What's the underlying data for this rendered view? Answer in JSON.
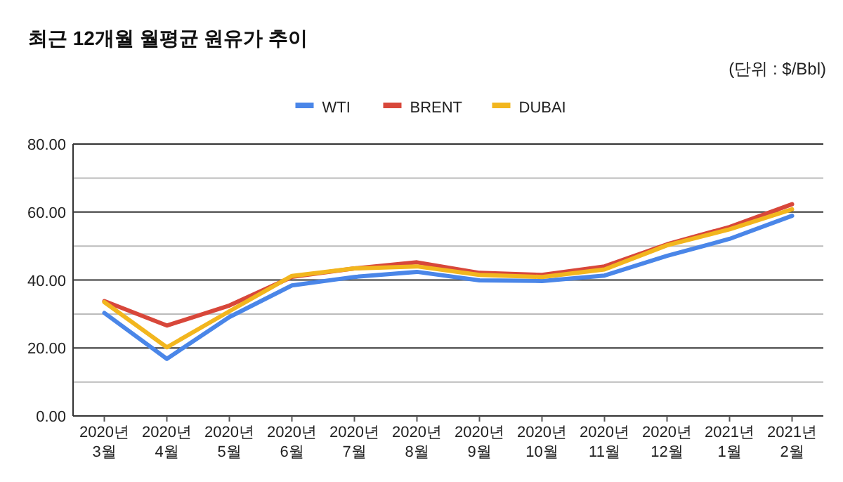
{
  "chart_data": {
    "type": "line",
    "title": "최근 12개월 월평균 원유가 추이",
    "subtitle": "(단위 : $/Bbl)",
    "categories": [
      "2020년 3월",
      "2020년 4월",
      "2020년 5월",
      "2020년 6월",
      "2020년 7월",
      "2020년 8월",
      "2020년 9월",
      "2020년 10월",
      "2020년 11월",
      "2020년 12월",
      "2021년 1월",
      "2021년 2월"
    ],
    "series": [
      {
        "name": "WTI",
        "color": "#4a86e8",
        "values": [
          30.3,
          16.8,
          29.1,
          38.4,
          40.9,
          42.4,
          39.9,
          39.7,
          41.3,
          47.1,
          52.1,
          58.9
        ]
      },
      {
        "name": "BRENT",
        "color": "#d8473a",
        "values": [
          33.8,
          26.6,
          32.5,
          40.9,
          43.4,
          45.2,
          42.1,
          41.5,
          44.0,
          50.5,
          55.6,
          62.3
        ]
      },
      {
        "name": "DUBAI",
        "color": "#f2b61e",
        "values": [
          33.5,
          20.2,
          30.8,
          41.2,
          43.4,
          44.0,
          41.5,
          40.9,
          43.1,
          50.2,
          54.9,
          60.8
        ]
      }
    ],
    "ylim": [
      0,
      80
    ],
    "yticks": [
      {
        "value": 0,
        "label": "0.00"
      },
      {
        "value": 10,
        "label": null
      },
      {
        "value": 20,
        "label": "20.00"
      },
      {
        "value": 30,
        "label": null
      },
      {
        "value": 40,
        "label": "40.00"
      },
      {
        "value": 50,
        "label": null
      },
      {
        "value": 60,
        "label": "60.00"
      },
      {
        "value": 70,
        "label": null
      },
      {
        "value": 80,
        "label": "80.00"
      }
    ],
    "grid": "y",
    "legend": "top",
    "marker": "none",
    "line_style": "solid"
  }
}
